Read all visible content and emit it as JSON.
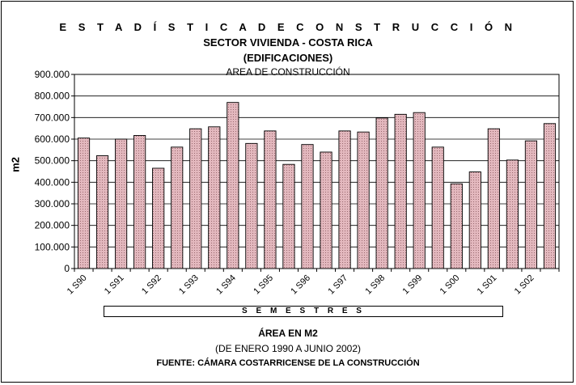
{
  "header": {
    "title": "E S T A D Í S T I C A   D E  C O N S T R U C C I Ó N",
    "subtitle1": "SECTOR VIVIENDA - COSTA RICA",
    "subtitle2": "(EDIFICACIONES)",
    "subtitle3": "AREA DE CONSTRUCCIÓN"
  },
  "axis_box_label": "S E M E S T R E S",
  "footer": {
    "line1": "ÁREA EN M2",
    "line2": "(DE ENERO 1990 A  JUNIO 2002)",
    "line3": "FUENTE:  CÁMARA COSTARRICENSE DE LA CONSTRUCCIÓN"
  },
  "colors": {
    "bar_fill": "#e3b8be",
    "bar_stroke": "#000000",
    "grid": "#000000"
  },
  "chart_data": {
    "type": "bar",
    "ylabel": "m2",
    "xlabel": "S E M E S T R E S",
    "ylim": [
      0,
      900000
    ],
    "yticks": [
      "0",
      "100.000",
      "200.000",
      "300.000",
      "400.000",
      "500.000",
      "600.000",
      "700.000",
      "800.000",
      "900.000"
    ],
    "tick_labels": [
      "1 S90",
      "1 S91",
      "1 S92",
      "1 S93",
      "1 S94",
      "1 S95",
      "1 S96",
      "1 S97",
      "1 S98",
      "1 S99",
      "1 S00",
      "1 S01",
      "1 S02"
    ],
    "grid": true,
    "values": [
      605000,
      523000,
      600000,
      617000,
      465000,
      563000,
      648000,
      657000,
      770000,
      580000,
      638000,
      483000,
      575000,
      540000,
      638000,
      633000,
      698000,
      715000,
      723000,
      563000,
      393000,
      448000,
      648000,
      503000,
      592000,
      672000
    ]
  }
}
